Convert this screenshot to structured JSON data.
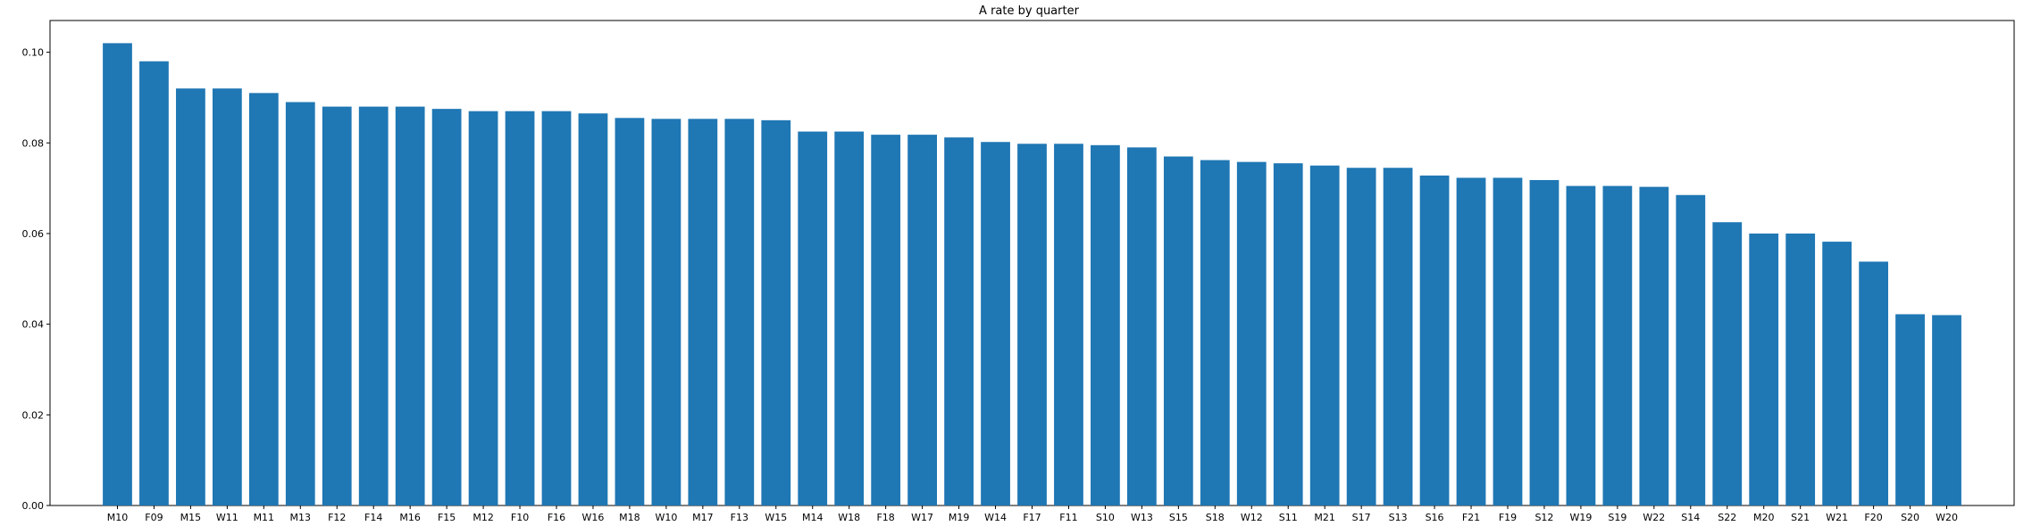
{
  "colors": {
    "bar": "#1f77b4",
    "axis": "#000000",
    "background": "#ffffff"
  },
  "chart_data": {
    "type": "bar",
    "title": "A rate by quarter",
    "xlabel": "",
    "ylabel": "",
    "grid": false,
    "ylim": [
      0,
      0.107
    ],
    "yticks": [
      "0.00",
      "0.02",
      "0.04",
      "0.06",
      "0.08",
      "0.10"
    ],
    "categories": [
      "M10",
      "F09",
      "M15",
      "W11",
      "M11",
      "M13",
      "F12",
      "F14",
      "M16",
      "F15",
      "M12",
      "F10",
      "F16",
      "W16",
      "M18",
      "W10",
      "M17",
      "F13",
      "W15",
      "M14",
      "W18",
      "F18",
      "W17",
      "M19",
      "W14",
      "F17",
      "F11",
      "S10",
      "W13",
      "S15",
      "S18",
      "W12",
      "S11",
      "M21",
      "S17",
      "S13",
      "S16",
      "F21",
      "F19",
      "S12",
      "W19",
      "S19",
      "W22",
      "S14",
      "S22",
      "M20",
      "S21",
      "W21",
      "F20",
      "S20",
      "W20"
    ],
    "values": [
      0.102,
      0.098,
      0.092,
      0.092,
      0.091,
      0.089,
      0.088,
      0.088,
      0.088,
      0.0875,
      0.087,
      0.087,
      0.087,
      0.0865,
      0.0855,
      0.0853,
      0.0853,
      0.0853,
      0.085,
      0.0825,
      0.0825,
      0.0818,
      0.0818,
      0.0812,
      0.0802,
      0.0798,
      0.0798,
      0.0795,
      0.079,
      0.077,
      0.0762,
      0.0758,
      0.0755,
      0.075,
      0.0745,
      0.0745,
      0.0728,
      0.0723,
      0.0723,
      0.0718,
      0.0705,
      0.0705,
      0.0703,
      0.0685,
      0.0625,
      0.06,
      0.06,
      0.0582,
      0.0538,
      0.0422,
      0.042
    ]
  }
}
